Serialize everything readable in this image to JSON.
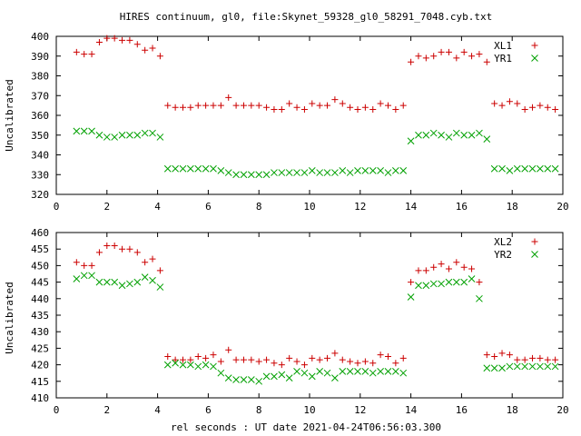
{
  "chart_data": [
    {
      "type": "scatter",
      "title": "HIRES continuum, gl0, file:Skynet_59328_gl0_58291_7048.cyb.txt",
      "xlabel": "",
      "ylabel": "Uncalibrated",
      "xlim": [
        0,
        20
      ],
      "ylim": [
        320,
        400
      ],
      "xticks": [
        0,
        2,
        4,
        6,
        8,
        10,
        12,
        14,
        16,
        18,
        20
      ],
      "yticks": [
        320,
        330,
        340,
        350,
        360,
        370,
        380,
        390,
        400
      ],
      "grid": false,
      "legend": "top-right",
      "x": [
        0.8,
        1.1,
        1.4,
        1.7,
        2.0,
        2.3,
        2.6,
        2.9,
        3.2,
        3.5,
        3.8,
        4.1,
        4.4,
        4.7,
        5.0,
        5.3,
        5.6,
        5.9,
        6.2,
        6.5,
        6.8,
        7.1,
        7.4,
        7.7,
        8.0,
        8.3,
        8.6,
        8.9,
        9.2,
        9.5,
        9.8,
        10.1,
        10.4,
        10.7,
        11.0,
        11.3,
        11.6,
        11.9,
        12.2,
        12.5,
        12.8,
        13.1,
        13.4,
        13.7,
        14.0,
        14.3,
        14.6,
        14.9,
        15.2,
        15.5,
        15.8,
        16.1,
        16.4,
        16.7,
        17.0,
        17.3,
        17.6,
        17.9,
        18.2,
        18.5,
        18.8,
        19.1,
        19.4,
        19.7
      ],
      "series": [
        {
          "name": "XL1",
          "marker": "plus",
          "color": "#cc0000",
          "values": [
            392,
            391,
            391,
            397,
            399,
            399,
            398,
            398,
            396,
            393,
            394,
            390,
            365,
            364,
            364,
            364,
            365,
            365,
            365,
            365,
            369,
            365,
            365,
            365,
            365,
            364,
            363,
            363,
            366,
            364,
            363,
            366,
            365,
            365,
            368,
            366,
            364,
            363,
            364,
            363,
            366,
            365,
            363,
            365,
            387,
            390,
            389,
            390,
            392,
            392,
            389,
            392,
            390,
            391,
            387,
            366,
            365,
            367,
            366,
            363,
            364,
            365,
            364,
            363
          ]
        },
        {
          "name": "YR1",
          "marker": "cross",
          "color": "#00a000",
          "values": [
            352,
            352,
            352,
            350,
            349,
            349,
            350,
            350,
            350,
            351,
            351,
            349,
            333,
            333,
            333,
            333,
            333,
            333,
            333,
            332,
            331,
            330,
            330,
            330,
            330,
            330,
            331,
            331,
            331,
            331,
            331,
            332,
            331,
            331,
            331,
            332,
            331,
            332,
            332,
            332,
            332,
            331,
            332,
            332,
            347,
            350,
            350,
            351,
            350,
            349,
            351,
            350,
            350,
            351,
            348,
            333,
            333,
            332,
            333,
            333,
            333,
            333,
            333,
            333
          ]
        }
      ]
    },
    {
      "type": "scatter",
      "xlabel": "rel seconds : UT date 2021-04-24T06:56:03.300",
      "ylabel": "Uncalibrated",
      "xlim": [
        0,
        20
      ],
      "ylim": [
        410,
        460
      ],
      "xticks": [
        0,
        2,
        4,
        6,
        8,
        10,
        12,
        14,
        16,
        18,
        20
      ],
      "yticks": [
        410,
        415,
        420,
        425,
        430,
        435,
        440,
        445,
        450,
        455,
        460
      ],
      "grid": false,
      "legend": "top-right",
      "x": [
        0.8,
        1.1,
        1.4,
        1.7,
        2.0,
        2.3,
        2.6,
        2.9,
        3.2,
        3.5,
        3.8,
        4.1,
        4.4,
        4.7,
        5.0,
        5.3,
        5.6,
        5.9,
        6.2,
        6.5,
        6.8,
        7.1,
        7.4,
        7.7,
        8.0,
        8.3,
        8.6,
        8.9,
        9.2,
        9.5,
        9.8,
        10.1,
        10.4,
        10.7,
        11.0,
        11.3,
        11.6,
        11.9,
        12.2,
        12.5,
        12.8,
        13.1,
        13.4,
        13.7,
        14.0,
        14.3,
        14.6,
        14.9,
        15.2,
        15.5,
        15.8,
        16.1,
        16.4,
        16.7,
        17.0,
        17.3,
        17.6,
        17.9,
        18.2,
        18.5,
        18.8,
        19.1,
        19.4,
        19.7
      ],
      "series": [
        {
          "name": "XL2",
          "marker": "plus",
          "color": "#cc0000",
          "values": [
            451,
            450,
            450,
            454,
            456,
            456,
            455,
            455,
            454,
            451,
            452,
            448.5,
            422.5,
            421.5,
            421.5,
            421.5,
            422.5,
            422,
            423,
            421,
            424.5,
            421.5,
            421.5,
            421.5,
            421,
            421.5,
            420.5,
            420,
            422,
            421,
            420,
            422,
            421.5,
            422,
            423.5,
            421.5,
            421,
            420.5,
            421,
            420.5,
            423,
            422.5,
            420.5,
            422,
            445,
            448.5,
            448.5,
            449.5,
            450.5,
            449,
            451,
            449.5,
            449,
            445,
            423,
            422.5,
            423.5,
            423,
            421.5,
            421.5,
            422,
            422,
            421.5,
            421.5
          ]
        },
        {
          "name": "YR2",
          "marker": "cross",
          "color": "#00a000",
          "values": [
            446,
            447,
            447,
            445,
            445,
            445,
            444,
            444.5,
            445,
            446.5,
            445.5,
            443.5,
            420,
            420.5,
            420,
            420,
            419.5,
            420,
            419.5,
            417.5,
            416,
            415.5,
            415.5,
            415.5,
            415,
            416.5,
            416.5,
            417,
            416,
            418,
            417.5,
            416.5,
            418,
            417.5,
            416,
            418,
            418,
            418,
            418,
            417.5,
            418,
            418,
            418,
            417.5,
            440.5,
            444,
            444,
            444.5,
            444.5,
            445,
            445,
            445,
            446,
            440,
            419,
            419,
            419,
            419.5,
            419.5,
            419.5,
            419.5,
            419.5,
            419.5,
            419.5
          ]
        }
      ]
    }
  ]
}
